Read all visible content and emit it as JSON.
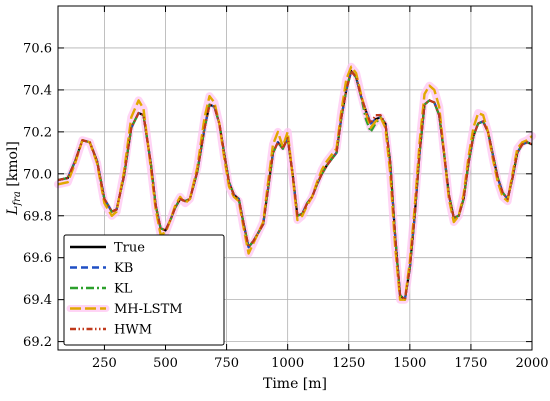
{
  "chart_data": {
    "type": "line",
    "xlabel": "Time [m]",
    "ylabel": "L_fra [kmol]",
    "ylabel_main": "L",
    "ylabel_sub": "fra",
    "ylabel_unit": " [kmol]",
    "xlim": [
      60,
      2000
    ],
    "ylim": [
      69.16,
      70.8
    ],
    "xticks": [
      250,
      500,
      750,
      1000,
      1250,
      1500,
      1750,
      2000
    ],
    "xtick_labels": [
      "250",
      "500",
      "750",
      "1000",
      "1250",
      "1500",
      "1750",
      "2000"
    ],
    "yticks": [
      69.2,
      69.4,
      69.6,
      69.8,
      70.0,
      70.2,
      70.4,
      70.6
    ],
    "ytick_labels": [
      "69.2",
      "69.4",
      "69.6",
      "69.8",
      "70.0",
      "70.2",
      "70.4",
      "70.6"
    ],
    "grid": true,
    "legend_position": "lower-left",
    "x": [
      60,
      100,
      130,
      160,
      190,
      220,
      250,
      280,
      300,
      330,
      360,
      390,
      410,
      440,
      460,
      480,
      500,
      520,
      540,
      560,
      580,
      600,
      630,
      660,
      680,
      700,
      720,
      740,
      760,
      780,
      800,
      820,
      840,
      860,
      880,
      900,
      920,
      940,
      960,
      980,
      1000,
      1020,
      1040,
      1060,
      1080,
      1100,
      1120,
      1140,
      1160,
      1180,
      1200,
      1220,
      1240,
      1260,
      1280,
      1300,
      1320,
      1340,
      1360,
      1380,
      1400,
      1420,
      1440,
      1460,
      1480,
      1500,
      1520,
      1540,
      1560,
      1580,
      1600,
      1620,
      1640,
      1660,
      1680,
      1700,
      1720,
      1740,
      1760,
      1780,
      1800,
      1820,
      1840,
      1860,
      1880,
      1900,
      1920,
      1940,
      1960,
      1980,
      2000
    ],
    "series": [
      {
        "name": "True",
        "color": "#000000",
        "dash": "solid",
        "values": [
          69.97,
          69.98,
          70.06,
          70.16,
          70.15,
          70.06,
          69.88,
          69.82,
          69.83,
          69.99,
          70.22,
          70.29,
          70.28,
          70.05,
          69.85,
          69.74,
          69.73,
          69.78,
          69.84,
          69.88,
          69.87,
          69.88,
          70.01,
          70.22,
          70.33,
          70.32,
          70.24,
          70.1,
          69.96,
          69.9,
          69.88,
          69.76,
          69.65,
          69.68,
          69.72,
          69.76,
          69.93,
          70.1,
          70.15,
          70.12,
          70.17,
          70.0,
          69.8,
          69.81,
          69.86,
          69.89,
          69.95,
          70.0,
          70.04,
          70.07,
          70.1,
          70.27,
          70.4,
          70.49,
          70.46,
          70.37,
          70.3,
          70.24,
          70.26,
          70.27,
          70.24,
          70.05,
          69.7,
          69.42,
          69.4,
          69.55,
          69.8,
          70.1,
          70.33,
          70.35,
          70.34,
          70.28,
          70.1,
          69.9,
          69.79,
          69.8,
          69.88,
          70.05,
          70.18,
          70.24,
          70.25,
          70.2,
          70.09,
          69.98,
          69.91,
          69.88,
          69.98,
          70.1,
          70.14,
          70.15,
          70.14
        ]
      },
      {
        "name": "KB",
        "color": "#1f4fc4",
        "dash": "dashed",
        "values": [
          69.97,
          69.98,
          70.06,
          70.16,
          70.15,
          70.06,
          69.88,
          69.82,
          69.83,
          69.99,
          70.22,
          70.29,
          70.28,
          70.05,
          69.85,
          69.74,
          69.73,
          69.78,
          69.84,
          69.88,
          69.87,
          69.88,
          70.01,
          70.22,
          70.33,
          70.32,
          70.24,
          70.1,
          69.96,
          69.9,
          69.88,
          69.76,
          69.65,
          69.68,
          69.72,
          69.76,
          69.93,
          70.1,
          70.15,
          70.12,
          70.17,
          70.0,
          69.8,
          69.81,
          69.86,
          69.89,
          69.95,
          70.0,
          70.04,
          70.07,
          70.1,
          70.27,
          70.4,
          70.49,
          70.46,
          70.37,
          70.3,
          70.24,
          70.26,
          70.27,
          70.24,
          70.05,
          69.7,
          69.42,
          69.4,
          69.55,
          69.8,
          70.1,
          70.33,
          70.35,
          70.34,
          70.28,
          70.1,
          69.9,
          69.79,
          69.8,
          69.88,
          70.05,
          70.18,
          70.24,
          70.25,
          70.2,
          70.09,
          69.98,
          69.91,
          69.88,
          69.98,
          70.1,
          70.14,
          70.15,
          70.14
        ]
      },
      {
        "name": "KL",
        "color": "#2ca02c",
        "dash": "dashdot",
        "values": [
          69.97,
          69.98,
          70.06,
          70.16,
          70.15,
          70.06,
          69.88,
          69.82,
          69.83,
          69.99,
          70.22,
          70.29,
          70.28,
          70.05,
          69.85,
          69.74,
          69.73,
          69.78,
          69.84,
          69.88,
          69.87,
          69.88,
          70.01,
          70.22,
          70.33,
          70.32,
          70.24,
          70.1,
          69.96,
          69.9,
          69.88,
          69.76,
          69.65,
          69.68,
          69.72,
          69.76,
          69.93,
          70.1,
          70.15,
          70.12,
          70.17,
          70.0,
          69.8,
          69.81,
          69.86,
          69.89,
          69.95,
          70.0,
          70.04,
          70.07,
          70.1,
          70.27,
          70.4,
          70.49,
          70.46,
          70.37,
          70.26,
          70.2,
          70.24,
          70.27,
          70.24,
          70.05,
          69.7,
          69.42,
          69.4,
          69.55,
          69.8,
          70.1,
          70.33,
          70.35,
          70.34,
          70.28,
          70.1,
          69.9,
          69.79,
          69.8,
          69.88,
          70.05,
          70.18,
          70.24,
          70.25,
          70.2,
          70.09,
          69.98,
          69.91,
          69.88,
          69.98,
          70.1,
          70.14,
          70.15,
          70.14
        ]
      },
      {
        "name": "MH-LSTM",
        "color": "#e0a800",
        "dash": "longdash",
        "values": [
          69.95,
          69.96,
          70.05,
          70.16,
          70.15,
          70.05,
          69.86,
          69.8,
          69.82,
          70.01,
          70.27,
          70.35,
          70.31,
          70.03,
          69.83,
          69.71,
          69.72,
          69.78,
          69.85,
          69.89,
          69.86,
          69.88,
          70.03,
          70.27,
          70.37,
          70.34,
          70.24,
          70.08,
          69.94,
          69.89,
          69.87,
          69.74,
          69.62,
          69.67,
          69.72,
          69.77,
          69.96,
          70.14,
          70.2,
          70.13,
          70.2,
          69.99,
          69.78,
          69.8,
          69.85,
          69.89,
          69.96,
          70.02,
          70.06,
          70.09,
          70.12,
          70.3,
          70.45,
          70.51,
          70.48,
          70.38,
          70.29,
          70.22,
          70.25,
          70.27,
          70.22,
          70.0,
          69.65,
          69.4,
          69.4,
          69.58,
          69.84,
          70.15,
          70.38,
          70.42,
          70.4,
          70.32,
          70.1,
          69.88,
          69.77,
          69.8,
          69.9,
          70.08,
          70.22,
          70.29,
          70.28,
          70.2,
          70.07,
          69.96,
          69.89,
          69.87,
          70.0,
          70.12,
          70.15,
          70.16,
          70.18
        ]
      },
      {
        "name": "HWM",
        "color": "#c0391b",
        "dash": "dashdotdot",
        "values": [
          69.97,
          69.98,
          70.06,
          70.16,
          70.15,
          70.06,
          69.88,
          69.82,
          69.83,
          69.99,
          70.22,
          70.29,
          70.28,
          70.05,
          69.85,
          69.74,
          69.73,
          69.78,
          69.84,
          69.88,
          69.87,
          69.88,
          70.01,
          70.22,
          70.33,
          70.32,
          70.24,
          70.1,
          69.96,
          69.9,
          69.88,
          69.76,
          69.65,
          69.68,
          69.72,
          69.76,
          69.93,
          70.1,
          70.15,
          70.12,
          70.17,
          70.0,
          69.8,
          69.81,
          69.86,
          69.89,
          69.95,
          70.0,
          70.04,
          70.07,
          70.1,
          70.27,
          70.4,
          70.49,
          70.46,
          70.37,
          70.3,
          70.24,
          70.28,
          70.28,
          70.24,
          70.05,
          69.7,
          69.42,
          69.4,
          69.55,
          69.8,
          70.1,
          70.33,
          70.35,
          70.34,
          70.28,
          70.1,
          69.9,
          69.79,
          69.8,
          69.88,
          70.05,
          70.18,
          70.24,
          70.25,
          70.2,
          70.09,
          69.98,
          69.91,
          69.88,
          69.98,
          70.1,
          70.14,
          70.15,
          70.14
        ]
      }
    ]
  }
}
